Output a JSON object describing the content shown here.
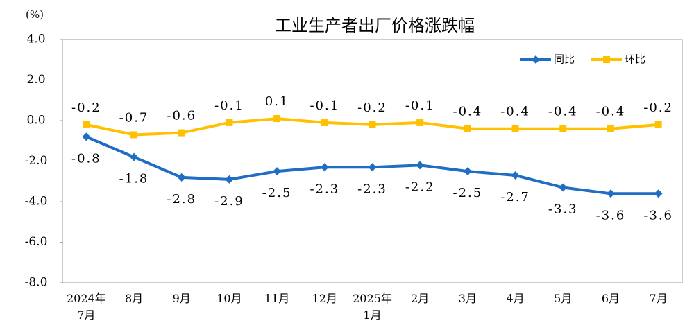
{
  "chart_data": {
    "type": "line",
    "title": "工业生产者出厂价格涨跌幅",
    "ylabel": "(%)",
    "categories": [
      "2024年\n7月",
      "8月",
      "9月",
      "10月",
      "11月",
      "12月",
      "2025年\n1月",
      "2月",
      "3月",
      "4月",
      "5月",
      "6月",
      "7月"
    ],
    "series": [
      {
        "name": "同比",
        "color": "#1f6dc4",
        "marker": "diamond",
        "values": [
          -0.8,
          -1.8,
          -2.8,
          -2.9,
          -2.5,
          -2.3,
          -2.3,
          -2.2,
          -2.5,
          -2.7,
          -3.3,
          -3.6,
          -3.6
        ]
      },
      {
        "name": "环比",
        "color": "#ffc000",
        "marker": "square",
        "values": [
          -0.2,
          -0.7,
          -0.6,
          -0.1,
          0.1,
          -0.1,
          -0.2,
          -0.1,
          -0.4,
          -0.4,
          -0.4,
          -0.4,
          -0.2
        ]
      }
    ],
    "ylim": [
      -8,
      4
    ],
    "yticks": [
      {
        "value": -8,
        "label": "-8.0"
      },
      {
        "value": -6,
        "label": "-6.0"
      },
      {
        "value": -4,
        "label": "-4.0"
      },
      {
        "value": -2,
        "label": "-2.0"
      },
      {
        "value": 0,
        "label": "0.0"
      },
      {
        "value": 2,
        "label": "2.0"
      },
      {
        "value": 4,
        "label": "4.0"
      }
    ],
    "grid": false,
    "legend": "top-right"
  }
}
